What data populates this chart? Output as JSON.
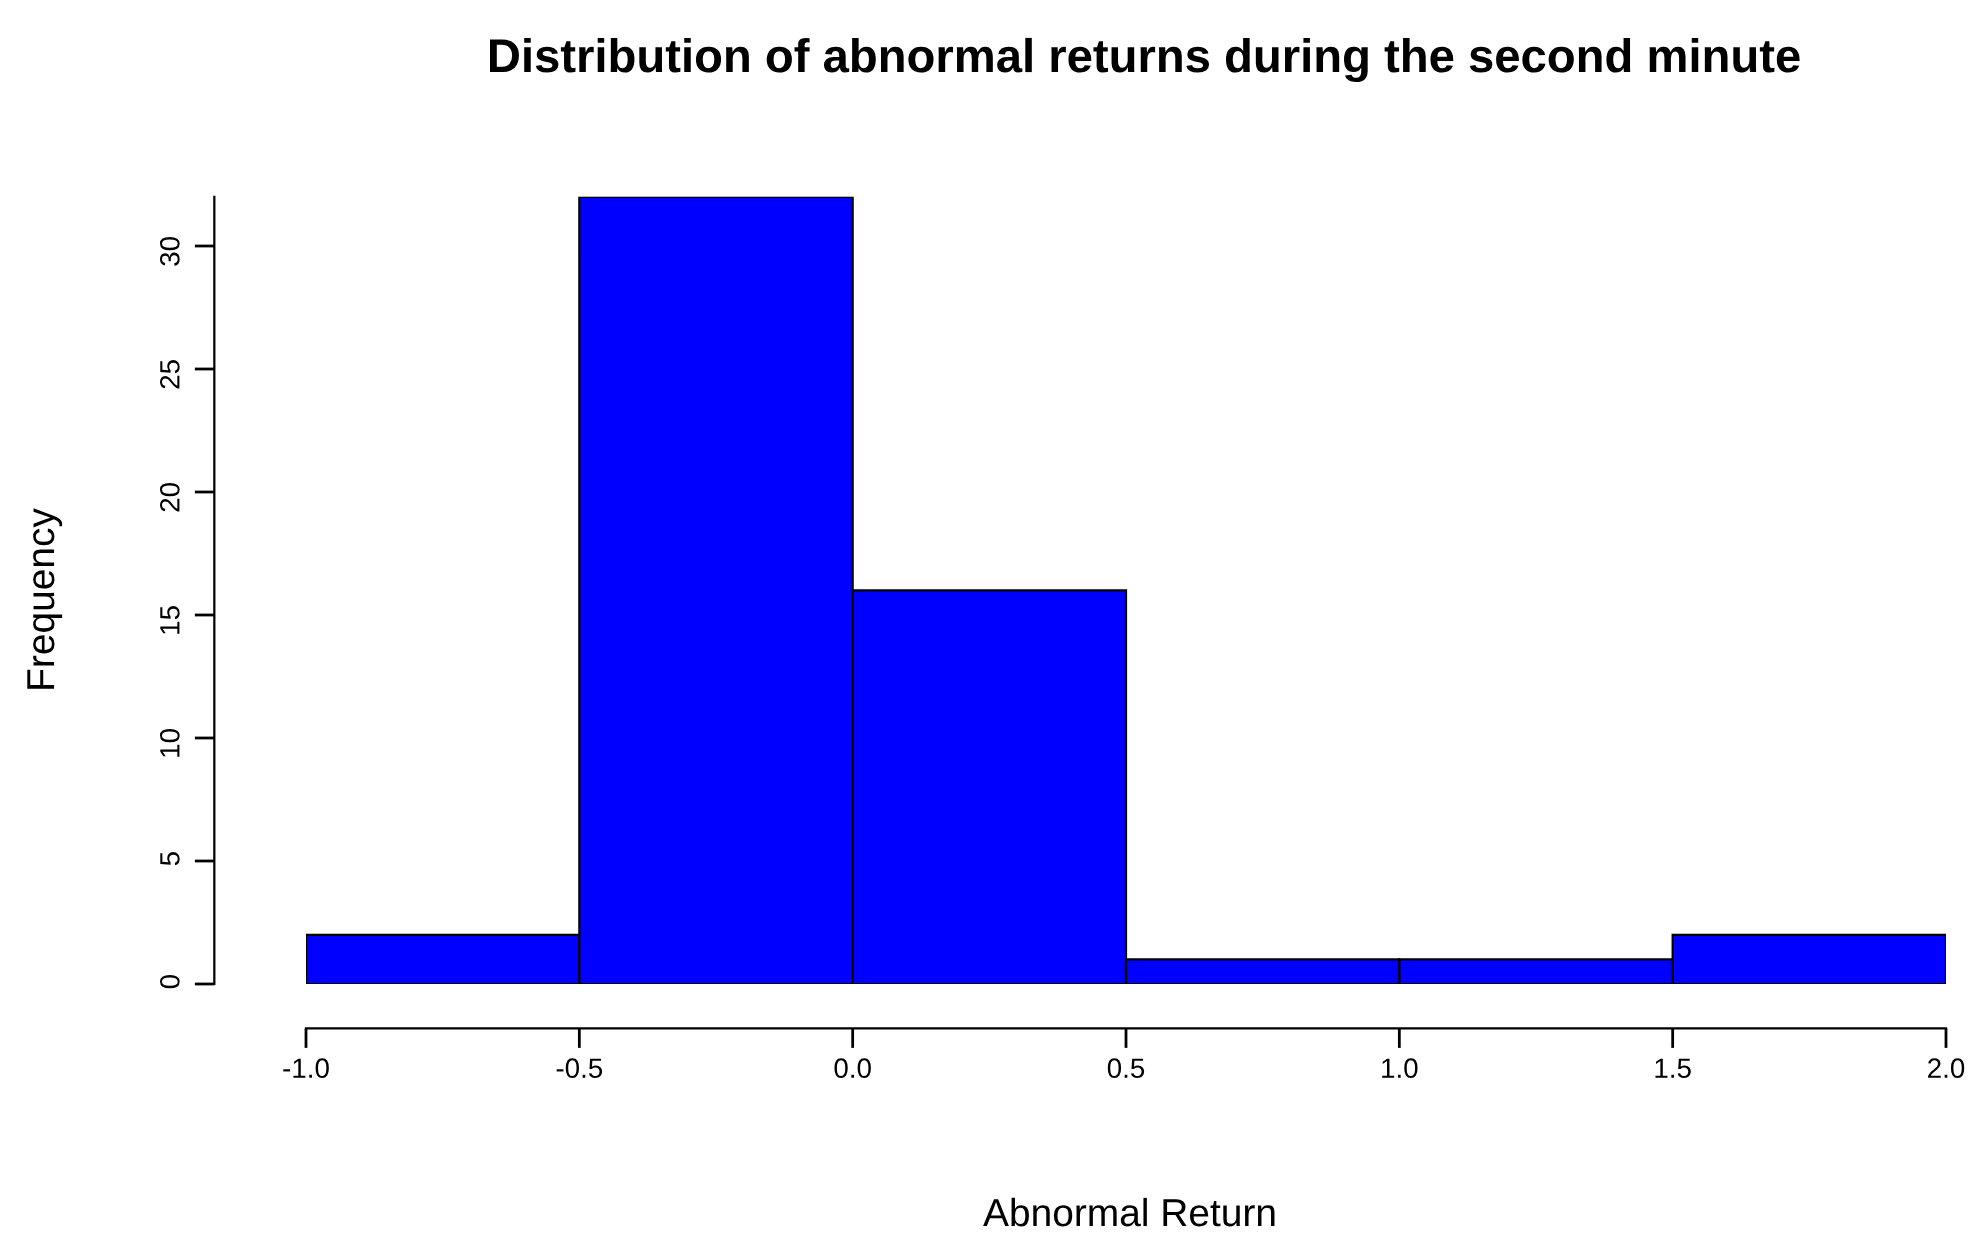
{
  "chart_data": {
    "type": "histogram",
    "title": "Distribution of abnormal returns during the second minute",
    "xlabel": "Abnormal Return",
    "ylabel": "Frequency",
    "bins": [
      -1.0,
      -0.5,
      0.0,
      0.5,
      1.0,
      1.5,
      2.0
    ],
    "values": [
      2,
      32,
      16,
      1,
      1,
      2
    ],
    "color": "#0000ff",
    "xlim": [
      -1.0,
      2.0
    ],
    "ylim": [
      0,
      32
    ],
    "xticks": [
      {
        "value": -1.0,
        "label": "-1.0"
      },
      {
        "value": -0.5,
        "label": "-0.5"
      },
      {
        "value": 0.0,
        "label": "0.0"
      },
      {
        "value": 0.5,
        "label": "0.5"
      },
      {
        "value": 1.0,
        "label": "1.0"
      },
      {
        "value": 1.5,
        "label": "1.5"
      },
      {
        "value": 2.0,
        "label": "2.0"
      }
    ],
    "yticks": [
      0,
      5,
      10,
      15,
      20,
      25,
      30
    ],
    "grid": false
  }
}
